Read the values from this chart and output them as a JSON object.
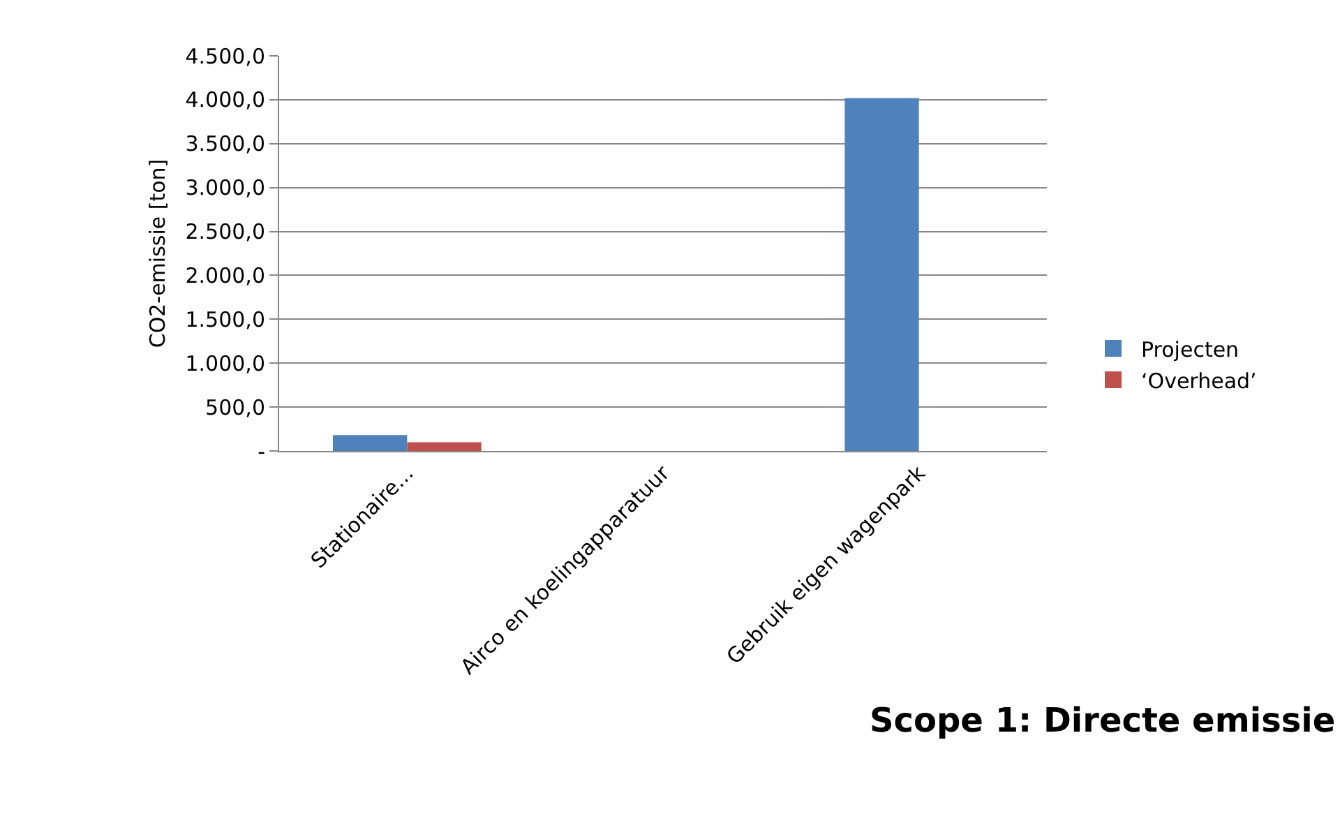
{
  "chart_data": {
    "type": "bar",
    "ylabel": "CO2-emissie [ton]",
    "annotations": [
      "Scope 1: Directe emissie"
    ],
    "categories": [
      "Stationaire...",
      "Airco en koelingapparatuur",
      "Gebruik eigen wagenpark"
    ],
    "series": [
      {
        "name": "Projecten",
        "color": "#4f81bd",
        "values": [
          180,
          0,
          4020
        ]
      },
      {
        "name": "‘Overhead’",
        "color": "#c0504d",
        "values": [
          100,
          0,
          null
        ]
      }
    ],
    "ylim": [
      0,
      4500
    ],
    "yticks": [
      {
        "value": 0,
        "label": "-"
      },
      {
        "value": 500,
        "label": "500,0"
      },
      {
        "value": 1000,
        "label": "1.000,0"
      },
      {
        "value": 1500,
        "label": "1.500,0"
      },
      {
        "value": 2000,
        "label": "2.000,0"
      },
      {
        "value": 2500,
        "label": "2.500,0"
      },
      {
        "value": 3000,
        "label": "3.000,0"
      },
      {
        "value": 3500,
        "label": "3.500,0"
      },
      {
        "value": 4000,
        "label": "4.000,0"
      },
      {
        "value": 4500,
        "label": "4.500,0"
      }
    ],
    "grid": "y",
    "legend": "right"
  }
}
